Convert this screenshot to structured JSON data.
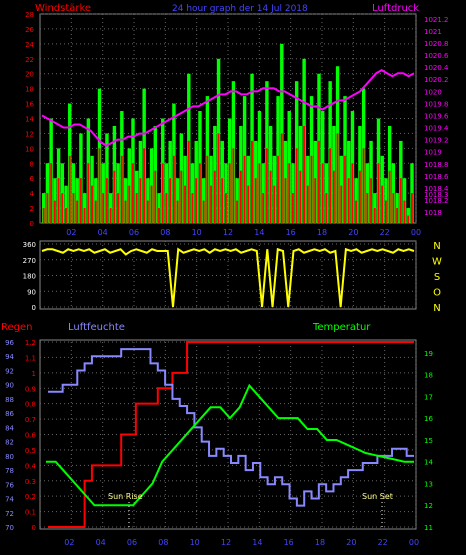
{
  "header": {
    "left_label": "Windstärke",
    "center_label": "24 hour graph der 14 Jul 2018",
    "right_label": "Luftdruck"
  },
  "bottom_labels": {
    "left": "Regen",
    "left2": "Luftfeuchte",
    "right": "Temperatur",
    "sunrise": "Sun Rise",
    "sunset": "Sun Set"
  },
  "direction_letters": [
    "N",
    "W",
    "S",
    "O",
    "N"
  ],
  "colors": {
    "wind": "#ff0000",
    "gust": "#00ff00",
    "pressure": "#ff00ff",
    "direction": "#ffff00",
    "rain": "#ff0000",
    "humidity": "#8888ff",
    "temperature": "#00ff00",
    "grid": "#aaaaaa",
    "axis_left": "#ff0000",
    "axis_right_pressure": "#ff00ff",
    "axis_right_temp": "#00ff00",
    "hour_labels": "#4444ff"
  },
  "chart_data": [
    {
      "type": "bar",
      "name": "wind_pressure",
      "x_ticks": [
        "02",
        "04",
        "06",
        "08",
        "10",
        "12",
        "14",
        "16",
        "18",
        "20",
        "22",
        "00"
      ],
      "y_left_ticks": [
        0,
        2,
        4,
        6,
        8,
        10,
        12,
        14,
        16,
        18,
        20,
        22,
        24,
        26,
        28
      ],
      "y_left_range": [
        0,
        28
      ],
      "y_right_ticks": [
        1018,
        1018.2,
        1018.3,
        1018.4,
        1018.6,
        1018.8,
        1019,
        1019.2,
        1019.4,
        1019.6,
        1019.8,
        1020,
        1020.2,
        1020.4,
        1020.6,
        1020.8,
        1021,
        1021.2
      ],
      "y_right_range": [
        1017.82,
        1021.28
      ],
      "series": [
        {
          "name": "wind",
          "values": [
            2,
            4,
            8,
            3,
            6,
            4,
            2,
            9,
            4,
            3,
            6,
            2,
            8,
            5,
            3,
            10,
            4,
            6,
            2,
            7,
            4,
            9,
            3,
            5,
            8,
            4,
            6,
            10,
            3,
            5,
            7,
            2,
            8,
            4,
            6,
            9,
            3,
            7,
            5,
            11,
            4,
            6,
            8,
            3,
            9,
            5,
            7,
            12,
            6,
            4,
            8,
            10,
            3,
            7,
            9,
            5,
            11,
            6,
            8,
            4,
            10,
            7,
            5,
            9,
            12,
            6,
            8,
            4,
            10,
            7,
            13,
            5,
            9,
            6,
            11,
            8,
            4,
            10,
            7,
            12,
            5,
            9,
            6,
            8,
            3,
            7,
            10,
            4,
            6,
            2,
            8,
            5,
            3,
            7,
            4,
            2,
            6,
            3,
            1,
            4
          ]
        },
        {
          "name": "gust",
          "values": [
            4,
            8,
            14,
            6,
            10,
            8,
            5,
            16,
            8,
            6,
            12,
            4,
            14,
            9,
            6,
            18,
            8,
            12,
            4,
            13,
            8,
            15,
            6,
            10,
            14,
            7,
            11,
            18,
            6,
            10,
            13,
            4,
            14,
            8,
            11,
            16,
            6,
            12,
            9,
            20,
            8,
            11,
            15,
            6,
            17,
            9,
            13,
            22,
            11,
            8,
            14,
            19,
            6,
            13,
            17,
            9,
            20,
            11,
            15,
            8,
            19,
            13,
            9,
            17,
            24,
            11,
            15,
            8,
            19,
            13,
            22,
            9,
            17,
            11,
            20,
            15,
            8,
            19,
            13,
            21,
            9,
            17,
            11,
            15,
            6,
            13,
            18,
            8,
            11,
            4,
            14,
            9,
            6,
            13,
            8,
            4,
            11,
            6,
            2,
            8
          ]
        },
        {
          "name": "pressure",
          "values": [
            1019.6,
            1019.55,
            1019.5,
            1019.45,
            1019.4,
            1019.4,
            1019.45,
            1019.45,
            1019.4,
            1019.35,
            1019.25,
            1019.15,
            1019.1,
            1019.15,
            1019.2,
            1019.2,
            1019.25,
            1019.25,
            1019.3,
            1019.3,
            1019.35,
            1019.4,
            1019.45,
            1019.5,
            1019.55,
            1019.6,
            1019.65,
            1019.7,
            1019.75,
            1019.75,
            1019.8,
            1019.85,
            1019.9,
            1019.95,
            1019.95,
            1020.0,
            1020.0,
            1019.95,
            1019.95,
            1020.0,
            1020.0,
            1020.05,
            1020.05,
            1020.05,
            1020.0,
            1020.0,
            1019.95,
            1019.9,
            1019.85,
            1019.8,
            1019.75,
            1019.75,
            1019.7,
            1019.75,
            1019.8,
            1019.85,
            1019.85,
            1019.9,
            1019.95,
            1020.0,
            1020.1,
            1020.2,
            1020.3,
            1020.35,
            1020.3,
            1020.25,
            1020.3,
            1020.3,
            1020.25,
            1020.3
          ]
        }
      ]
    },
    {
      "type": "line",
      "name": "wind_direction",
      "y_ticks": [
        0,
        90,
        180,
        270,
        360
      ],
      "y_range": [
        0,
        360
      ],
      "x_ticks": [
        "02",
        "04",
        "06",
        "08",
        "10",
        "12",
        "14",
        "16",
        "18",
        "20",
        "22",
        "00"
      ],
      "series": [
        {
          "name": "direction",
          "values": [
            320,
            330,
            330,
            320,
            310,
            330,
            320,
            330,
            320,
            330,
            310,
            320,
            330,
            310,
            320,
            330,
            300,
            320,
            330,
            320,
            310,
            330,
            320,
            320,
            320,
            0,
            330,
            310,
            320,
            330,
            320,
            330,
            310,
            330,
            320,
            330,
            320,
            330,
            310,
            320,
            330,
            320,
            0,
            330,
            0,
            330,
            320,
            0,
            320,
            330,
            310,
            320,
            330,
            320,
            330,
            310,
            320,
            0,
            330,
            320,
            330,
            310,
            320,
            330,
            320,
            330,
            320,
            310,
            330,
            320,
            330,
            320
          ]
        }
      ]
    },
    {
      "type": "line",
      "name": "rain_humidity_temperature",
      "x_ticks": [
        "02",
        "04",
        "06",
        "08",
        "10",
        "12",
        "14",
        "16",
        "18",
        "20",
        "22",
        "00"
      ],
      "y_left_ticks": [
        0,
        0.1,
        0.2,
        0.3,
        0.4,
        0.5,
        0.6,
        0.7,
        0.8,
        0.9,
        1,
        1.1,
        1.2
      ],
      "y_left_range": [
        0,
        1.2
      ],
      "y_humidity_ticks": [
        70,
        72,
        74,
        76,
        78,
        80,
        82,
        84,
        86,
        88,
        90,
        92,
        94,
        96
      ],
      "y_humidity_range": [
        70,
        96
      ],
      "y_right_ticks": [
        11,
        12,
        13,
        14,
        15,
        16,
        17,
        18,
        19
      ],
      "y_right_range": [
        11,
        19.5
      ],
      "series": [
        {
          "name": "rain",
          "values": [
            0,
            0,
            0,
            0,
            0,
            0.3,
            0.4,
            0.4,
            0.4,
            0.4,
            0.6,
            0.6,
            0.8,
            0.8,
            0.8,
            0.9,
            0.9,
            1.0,
            1.0,
            1.2,
            1.2,
            1.2,
            1.2,
            1.2,
            1.2,
            1.2,
            1.2,
            1.2,
            1.2,
            1.2,
            1.2,
            1.2,
            1.2,
            1.2,
            1.2,
            1.2,
            1.2,
            1.2,
            1.2,
            1.2,
            1.2,
            1.2,
            1.2,
            1.2,
            1.2,
            1.2,
            1.2,
            1.2,
            1.2,
            1.2
          ]
        },
        {
          "name": "humidity",
          "values": [
            89,
            89,
            90,
            90,
            92,
            93,
            94,
            94,
            94,
            94,
            95,
            95,
            95,
            95,
            93,
            92,
            90,
            88,
            87,
            86,
            84,
            82,
            80,
            81,
            80,
            79,
            80,
            78,
            79,
            77,
            76,
            77,
            76,
            74,
            73,
            75,
            74,
            76,
            75,
            76,
            77,
            78,
            78,
            79,
            79,
            80,
            80,
            81,
            81,
            80
          ]
        },
        {
          "name": "temperature",
          "values": [
            14,
            14,
            13.5,
            13,
            12.5,
            12,
            12,
            12,
            12,
            12,
            12.5,
            13,
            14,
            14.5,
            15,
            15.5,
            16,
            16.5,
            16.5,
            16,
            16.5,
            17.5,
            17,
            16.5,
            16,
            16,
            16,
            15.5,
            15.5,
            15,
            15,
            14.8,
            14.6,
            14.4,
            14.3,
            14.2,
            14.1,
            14,
            14
          ]
        }
      ]
    }
  ]
}
